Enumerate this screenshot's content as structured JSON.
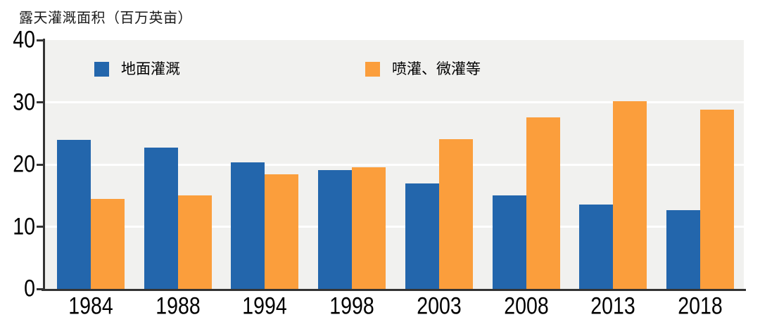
{
  "chart_data": {
    "type": "bar",
    "title": "露天灌溉面积（百万英亩）",
    "categories": [
      "1984",
      "1988",
      "1994",
      "1998",
      "2003",
      "2008",
      "2013",
      "2018"
    ],
    "series": [
      {
        "name": "地面灌溉",
        "color": "#2366ac",
        "values": [
          23.9,
          22.7,
          20.3,
          19.1,
          16.9,
          15.0,
          13.6,
          12.7
        ]
      },
      {
        "name": "喷灌、微灌等",
        "color": "#fb9e3c",
        "values": [
          14.5,
          15.0,
          18.4,
          19.6,
          24.1,
          27.6,
          30.2,
          28.8
        ]
      }
    ],
    "xlabel": "",
    "ylabel": "露天灌溉面积（百万英亩）",
    "ylim": [
      0,
      40
    ],
    "yticks": [
      0,
      10,
      20,
      30,
      40
    ],
    "grid": true,
    "legend_position": "top-inside",
    "colors": {
      "plot_background": "#f1f1ef",
      "gridline": "#ffffff",
      "axis": "#333333",
      "text": "#000000",
      "page_background": "#ffffff"
    }
  }
}
